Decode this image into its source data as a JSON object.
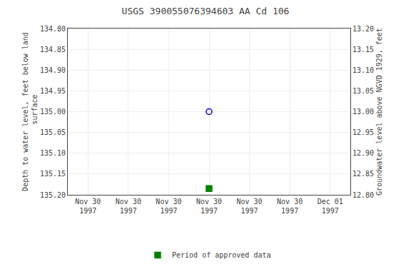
{
  "chart_data": {
    "type": "scatter",
    "title": "USGS 390055076394603 AA Cd 106",
    "y_label": "Depth to water level, feet below land\n surface",
    "y2_label": "Groundwater level above NGVD 1929, feet",
    "categories": [
      "Nov 30\n1997",
      "Nov 30\n1997",
      "Nov 30\n1997",
      "Nov 30\n1997",
      "Nov 30\n1997",
      "Nov 30\n1997",
      "Dec 01\n1997"
    ],
    "series": [
      {
        "color": "#0000cc",
        "marker": "circle_open",
        "values": [
          null,
          null,
          null,
          135.0,
          null,
          null,
          null
        ]
      },
      {
        "name": "Period of approved data",
        "color": "#008000",
        "marker": "square",
        "values": [
          null,
          null,
          null,
          135.185,
          null,
          null,
          null
        ]
      }
    ],
    "ylim": [
      135.2,
      134.8
    ],
    "yticks": [
      {
        "value": 134.8,
        "label": "134.80"
      },
      {
        "value": 134.85,
        "label": "134.85"
      },
      {
        "value": 134.9,
        "label": "134.90"
      },
      {
        "value": 134.95,
        "label": "134.95"
      },
      {
        "value": 135.0,
        "label": "135.00"
      },
      {
        "value": 135.05,
        "label": "135.05"
      },
      {
        "value": 135.1,
        "label": "135.10"
      },
      {
        "value": 135.15,
        "label": "135.15"
      },
      {
        "value": 135.2,
        "label": "135.20"
      }
    ],
    "y2lim": [
      12.8,
      13.2
    ],
    "y2ticks": [
      {
        "value": 12.8,
        "label": "12.80"
      },
      {
        "value": 12.85,
        "label": "12.85"
      },
      {
        "value": 12.9,
        "label": "12.90"
      },
      {
        "value": 12.95,
        "label": "12.95"
      },
      {
        "value": 13.0,
        "label": "13.00"
      },
      {
        "value": 13.05,
        "label": "13.05"
      },
      {
        "value": 13.1,
        "label": "13.10"
      },
      {
        "value": 13.15,
        "label": "13.15"
      },
      {
        "value": 13.2,
        "label": "13.20"
      }
    ],
    "grid": true,
    "legend": "bottom"
  }
}
